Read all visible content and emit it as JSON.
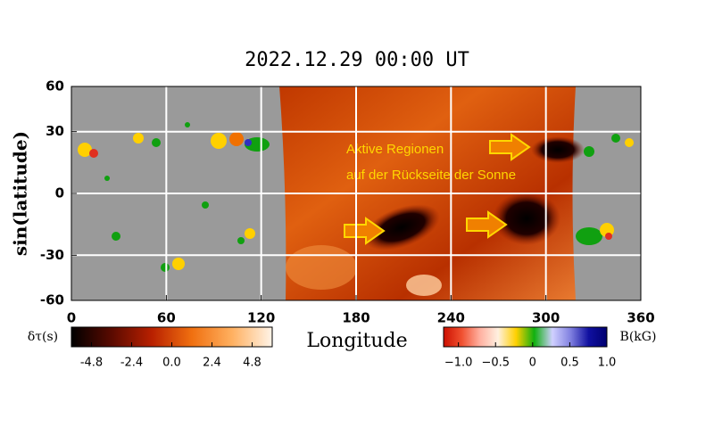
{
  "chart_data": {
    "type": "map",
    "title": "2022.12.29 00:00 UT",
    "x_label": "Longitude",
    "y_label": "sin(latitude)",
    "xlim": [
      0,
      360
    ],
    "xticks": [
      0,
      60,
      120,
      180,
      240,
      300,
      360
    ],
    "ylim": [
      -60,
      60
    ],
    "yticks": [
      60,
      30,
      0,
      -30,
      -60
    ],
    "yscale": "sine",
    "grid": true,
    "annotations": [
      "Aktive Regionen",
      "auf der Rückseite der Sonne"
    ],
    "colorbars": [
      {
        "label": "δτ(s)",
        "lim": [
          -6,
          6
        ],
        "ticks": [
          -4.8,
          -2.4,
          {
            "value": 0,
            "label": "0.0"
          },
          2.4,
          4.8
        ],
        "colors": [
          "#000000",
          "#5a0a00",
          "#b82000",
          "#f07010",
          "#ffb060",
          "#fff4e8"
        ]
      },
      {
        "label": "B(kG)",
        "lim": [
          -1.2,
          1
        ],
        "ticks": [
          {
            "value": -1,
            "label": "−1.0"
          },
          {
            "value": -0.5,
            "label": "−0.5"
          },
          0,
          0.5,
          {
            "value": 1,
            "label": "1.0"
          }
        ],
        "colors": [
          "#cc1000",
          "#f05030",
          "#ffb0a0",
          "#fff0e0",
          "#ffd000",
          "#10b010",
          "#d0d0ff",
          "#8080e0",
          "#1010a0",
          "#000070"
        ]
      }
    ]
  }
}
